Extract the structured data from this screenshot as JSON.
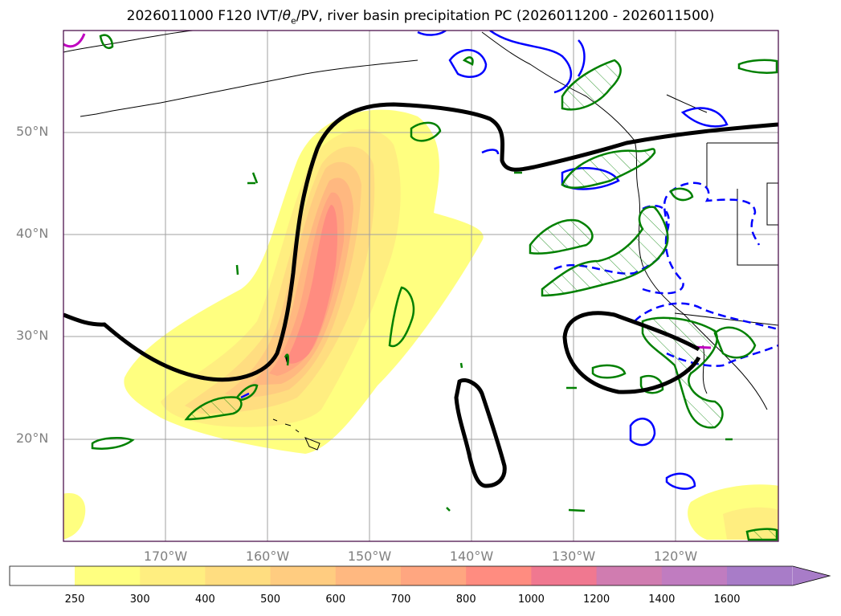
{
  "title": "2026011000 F120 IVT/θe/PV, river basin precipitation PC (2026011200 - 2026011500)",
  "title_parts": {
    "prefix": "2026011000 F120 IVT/",
    "theta": "θ",
    "sub": "e",
    "suffix": "/PV, river basin precipitation PC (2026011200 - 2026011500)"
  },
  "map": {
    "lon_range": [
      -180,
      -110
    ],
    "lat_range": [
      10,
      60
    ],
    "grid": true,
    "lat_labels": [
      "50°N",
      "40°N",
      "30°N",
      "20°N"
    ],
    "lat_values": [
      50,
      40,
      30,
      20
    ],
    "lon_labels": [
      "170°W",
      "160°W",
      "150°W",
      "140°W",
      "130°W",
      "120°W"
    ],
    "lon_values": [
      -170,
      -160,
      -150,
      -140,
      -130,
      -120
    ]
  },
  "colorbar": {
    "levels": [
      "250",
      "300",
      "400",
      "500",
      "600",
      "700",
      "800",
      "1000",
      "1200",
      "1400",
      "1600"
    ],
    "colors": [
      "#ffff80",
      "#ffee80",
      "#ffdd80",
      "#ffcc80",
      "#ffb880",
      "#ffa680",
      "#ff8c80",
      "#f07890",
      "#d07cb0",
      "#c07cc0",
      "#a87cc8"
    ],
    "below_color": "#ffffff",
    "extend": "max"
  },
  "colors": {
    "theta_e_contour": "#000000",
    "pv_contour": "#0000ff",
    "precip_contour": "#008000",
    "magenta_contour": "#c000c0",
    "grid": "#a0a0a0",
    "coastline": "#000000"
  }
}
